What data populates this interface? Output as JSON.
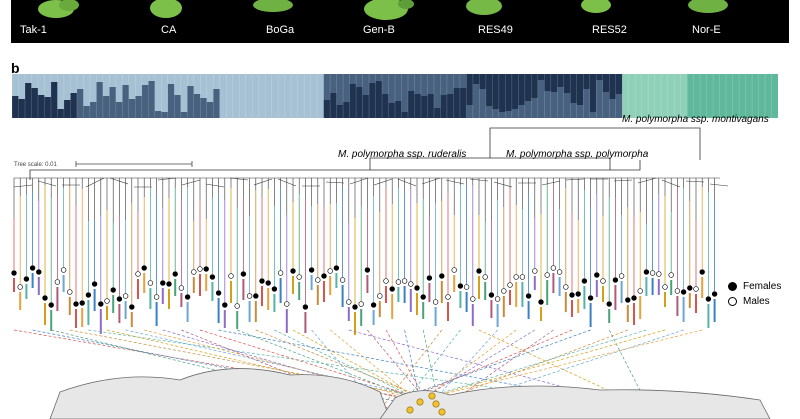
{
  "panel_a": {
    "accessions": [
      "Tak-1",
      "CA",
      "BoGa",
      "Gen-B",
      "RES49",
      "RES52",
      "Nor-E"
    ]
  },
  "panel_b": {
    "letter": "b",
    "clades": {
      "montivagans": "M. polymorpha ssp. montivagans",
      "ruderalis": "M. polymorpha ssp. ruderalis",
      "polymorpha": "M. polymorpha ssp. polymorpha"
    },
    "tree_scale": "Tree scale: 0.01",
    "legend": {
      "females": "Females",
      "males": "Males"
    }
  },
  "colors": {
    "photo_bg": "#000000",
    "plant_green": "#7cc04a",
    "admix_dark": "#1f3350",
    "admix_mid": "#47617f",
    "admix_light": "#a6c1d3",
    "admix_teal": "#5fb89b",
    "admix_teal_light": "#8fd0b8",
    "branch": "#333333",
    "map_land": "#e7e7e7",
    "map_edge": "#6a6a6a",
    "sample_point": "#f2c12e"
  }
}
